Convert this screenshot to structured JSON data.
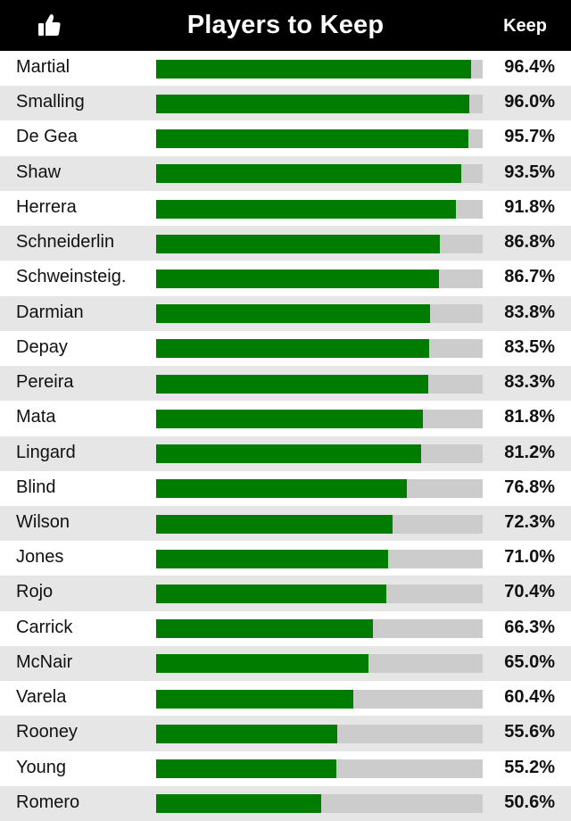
{
  "header": {
    "title": "Players to Keep",
    "column_label": "Keep",
    "icon": "thumbs-up-icon"
  },
  "colors": {
    "bar_fill": "#007d00",
    "bar_track": "#cccccc",
    "row_alt": "#e6e6e6",
    "header_bg": "#000000"
  },
  "chart_data": {
    "type": "bar",
    "orientation": "horizontal",
    "title": "Players to Keep",
    "value_label": "Keep",
    "unit": "%",
    "xlim": [
      0,
      100
    ],
    "categories": [
      "Martial",
      "Smalling",
      "De Gea",
      "Shaw",
      "Herrera",
      "Schneiderlin",
      "Schweinsteig.",
      "Darmian",
      "Depay",
      "Pereira",
      "Mata",
      "Lingard",
      "Blind",
      "Wilson",
      "Jones",
      "Rojo",
      "Carrick",
      "McNair",
      "Varela",
      "Rooney",
      "Young",
      "Romero"
    ],
    "values": [
      96.4,
      96.0,
      95.7,
      93.5,
      91.8,
      86.8,
      86.7,
      83.8,
      83.5,
      83.3,
      81.8,
      81.2,
      76.8,
      72.3,
      71.0,
      70.4,
      66.3,
      65.0,
      60.4,
      55.6,
      55.2,
      50.6
    ],
    "labels": [
      "96.4%",
      "96.0%",
      "95.7%",
      "93.5%",
      "91.8%",
      "86.8%",
      "86.7%",
      "83.8%",
      "83.5%",
      "83.3%",
      "81.8%",
      "81.2%",
      "76.8%",
      "72.3%",
      "71.0%",
      "70.4%",
      "66.3%",
      "65.0%",
      "60.4%",
      "55.6%",
      "55.2%",
      "50.6%"
    ]
  }
}
